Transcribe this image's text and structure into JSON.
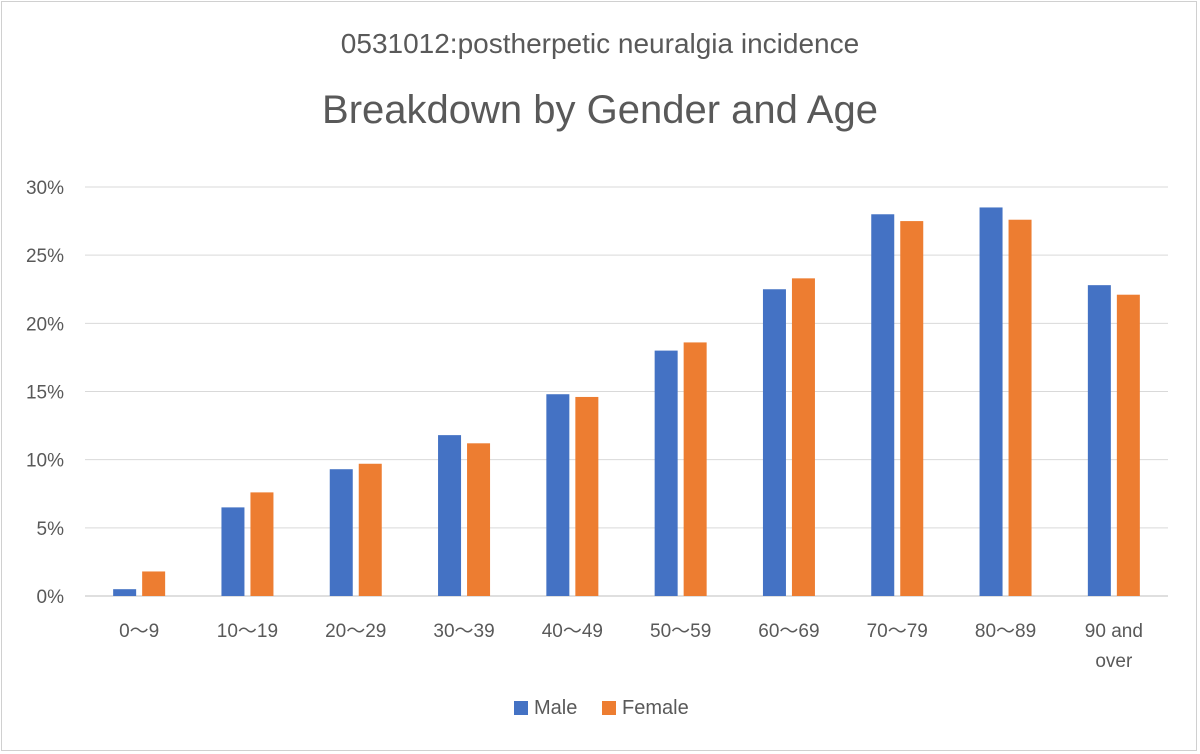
{
  "chart_data": {
    "type": "bar",
    "subtitle": "0531012:postherpetic neuralgia incidence",
    "title": "Breakdown by Gender and Age",
    "categories": [
      "0～9",
      "10～19",
      "20～29",
      "30～39",
      "40～49",
      "50～59",
      "60～69",
      "70～79",
      "80～89",
      "90 and over"
    ],
    "series": [
      {
        "name": "Male",
        "color": "#4472C4",
        "values": [
          0.5,
          6.5,
          9.3,
          11.8,
          14.8,
          18.0,
          22.5,
          28.0,
          28.5,
          22.8
        ]
      },
      {
        "name": "Female",
        "color": "#ED7D31",
        "values": [
          1.8,
          7.6,
          9.7,
          11.2,
          14.6,
          18.6,
          23.3,
          27.5,
          27.6,
          22.1
        ]
      }
    ],
    "ylim": [
      0,
      30
    ],
    "yticks": [
      "0%",
      "5%",
      "10%",
      "15%",
      "20%",
      "25%",
      "30%"
    ],
    "grid": true,
    "legend": "bottom",
    "xlabel": "",
    "ylabel": ""
  }
}
